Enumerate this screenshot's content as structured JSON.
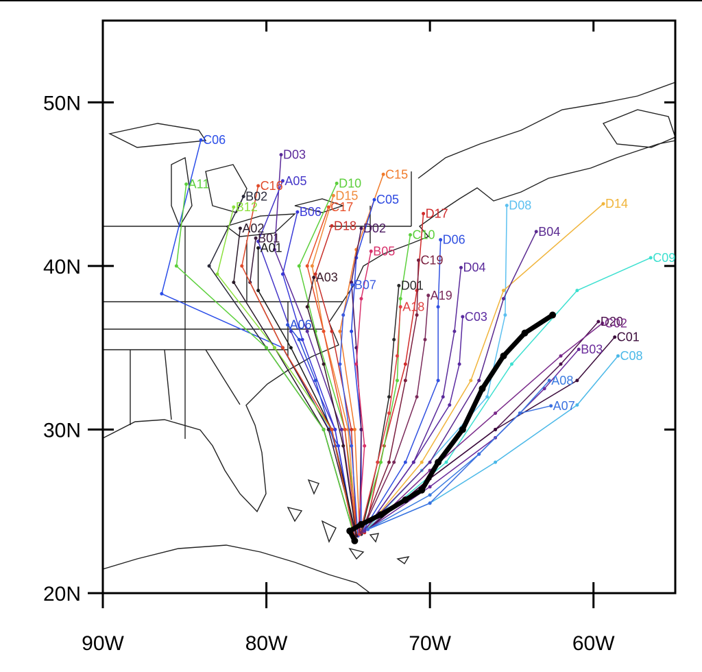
{
  "chart_data": {
    "type": "line",
    "xlim": [
      -90,
      -55
    ],
    "ylim": [
      20,
      55
    ],
    "xticks": [
      {
        "value": -90,
        "label": "90W"
      },
      {
        "value": -80,
        "label": "80W"
      },
      {
        "value": -70,
        "label": "70W"
      },
      {
        "value": -60,
        "label": "60W"
      }
    ],
    "yticks": [
      {
        "value": 20,
        "label": "20N"
      },
      {
        "value": 30,
        "label": "30N"
      },
      {
        "value": 40,
        "label": "40N"
      },
      {
        "value": 50,
        "label": "50N"
      }
    ],
    "observed": {
      "color": "#000000",
      "x": [
        -74.6,
        -74.9,
        -74.2,
        -73.0,
        -71.5,
        -70.5,
        -69.5,
        -68.0,
        -66.8,
        -65.5,
        -64.2,
        -62.5
      ],
      "y": [
        23.2,
        23.8,
        24.2,
        24.8,
        25.7,
        26.3,
        28.0,
        30.0,
        32.5,
        34.5,
        35.9,
        37.0
      ]
    },
    "series": [
      {
        "name": "C06",
        "color": "#2a4de8",
        "x": [
          -74.6,
          -75.6,
          -79,
          -86.4,
          -84.0
        ],
        "y": [
          23.5,
          29,
          35,
          38.3,
          47.7
        ]
      },
      {
        "name": "D03",
        "color": "#5b2a9a",
        "x": [
          -74.5,
          -75.4,
          -77.5,
          -79.5,
          -79.1
        ],
        "y": [
          23.6,
          30,
          36,
          41,
          46.8
        ]
      },
      {
        "name": "A05",
        "color": "#4436c8",
        "x": [
          -74.6,
          -75.8,
          -78.5,
          -80.5,
          -79.0
        ],
        "y": [
          23.4,
          30,
          36,
          41.5,
          45.2
        ]
      },
      {
        "name": "D10",
        "color": "#5ccf3c",
        "x": [
          -74.4,
          -75.2,
          -77,
          -78,
          -75.7
        ],
        "y": [
          23.7,
          30,
          36,
          40,
          45.05
        ]
      },
      {
        "name": "C15",
        "color": "#f07a2a",
        "x": [
          -74.3,
          -74.6,
          -75.5,
          -74.5,
          -72.85
        ],
        "y": [
          23.8,
          30,
          36,
          41,
          45.6
        ]
      },
      {
        "name": "D15",
        "color": "#f08a3a",
        "x": [
          -74.5,
          -75,
          -76.5,
          -77.2,
          -75.9
        ],
        "y": [
          23.5,
          30,
          36,
          40,
          44.3
        ]
      },
      {
        "name": "C05",
        "color": "#2a46e0",
        "x": [
          -74.2,
          -74.2,
          -74.8,
          -74.5,
          -73.4
        ],
        "y": [
          23.6,
          30,
          36,
          40.5,
          44.05
        ]
      },
      {
        "name": "B06",
        "color": "#3a3ad8",
        "x": [
          -74.6,
          -75.8,
          -77.8,
          -79,
          -78.1
        ],
        "y": [
          23.4,
          30,
          35.5,
          39.5,
          43.3
        ]
      },
      {
        "name": "C17",
        "color": "#e8502a",
        "x": [
          -74.5,
          -75.2,
          -76.5,
          -77.5,
          -76.2
        ],
        "y": [
          23.5,
          30,
          36,
          40,
          43.6
        ]
      },
      {
        "name": "D17",
        "color": "#d02a2a",
        "x": [
          -74.0,
          -72.8,
          -71.5,
          -70.8,
          -70.4
        ],
        "y": [
          23.7,
          29,
          34,
          38.5,
          43.2
        ]
      },
      {
        "name": "D18",
        "color": "#c8302a",
        "x": [
          -74.5,
          -74.8,
          -76,
          -77,
          -76.0
        ],
        "y": [
          23.6,
          30,
          36,
          39.5,
          42.45
        ]
      },
      {
        "name": "D02",
        "color": "#4a1860",
        "x": [
          -74.3,
          -74.2,
          -74.5,
          -74.8,
          -74.2
        ],
        "y": [
          23.6,
          30,
          35,
          39,
          42.3
        ]
      },
      {
        "name": "D08",
        "color": "#5cc0f0",
        "x": [
          -74.0,
          -70.5,
          -66.5,
          -65.4,
          -65.3
        ],
        "y": [
          23.8,
          27.5,
          32,
          37,
          43.7
        ]
      },
      {
        "name": "D14",
        "color": "#f0b43a",
        "x": [
          -74.0,
          -70.5,
          -67.5,
          -65.5,
          -59.4
        ],
        "y": [
          23.8,
          28,
          33,
          38.5,
          43.8
        ]
      },
      {
        "name": "B04",
        "color": "#5a2a90",
        "x": [
          -74.2,
          -70,
          -67,
          -65.5,
          -63.5
        ],
        "y": [
          23.7,
          28,
          33,
          38,
          42.1
        ]
      },
      {
        "name": "D06",
        "color": "#3050e0",
        "x": [
          -74.1,
          -71.5,
          -69.5,
          -69.5,
          -69.35
        ],
        "y": [
          23.8,
          28,
          33,
          37.5,
          41.6
        ]
      },
      {
        "name": "C09",
        "color": "#3ce0d0",
        "x": [
          -74.0,
          -69,
          -65,
          -61,
          -56.5
        ],
        "y": [
          23.8,
          28,
          34,
          38.5,
          40.5
        ]
      },
      {
        "name": "D04",
        "color": "#5a2a9a",
        "x": [
          -74.0,
          -71,
          -69.2,
          -68.5,
          -68.1
        ],
        "y": [
          23.8,
          28,
          32,
          36,
          39.9
        ]
      },
      {
        "name": "C10",
        "color": "#5cd03c",
        "x": [
          -74.3,
          -73,
          -72,
          -71.8,
          -71.2
        ],
        "y": [
          23.6,
          28,
          33,
          38,
          41.9
        ]
      },
      {
        "name": "C19",
        "color": "#7a1e3e",
        "x": [
          -74.2,
          -72.5,
          -71.5,
          -70.8,
          -70.7
        ],
        "y": [
          23.7,
          28,
          33,
          37,
          40.35
        ]
      },
      {
        "name": "B05",
        "color": "#d8306a",
        "x": [
          -74.4,
          -74,
          -74.5,
          -74.2,
          -73.6
        ],
        "y": [
          23.5,
          29,
          34,
          38,
          40.9
        ]
      },
      {
        "name": "B07",
        "color": "#3a5ae0",
        "x": [
          -74.4,
          -74.8,
          -75.5,
          -75.3,
          -74.75
        ],
        "y": [
          23.5,
          29,
          34,
          37,
          38.85
        ]
      },
      {
        "name": "D01",
        "color": "#2a2a2a",
        "x": [
          -74.2,
          -73.2,
          -72.5,
          -72.2,
          -71.9
        ],
        "y": [
          23.6,
          28,
          32,
          35.5,
          38.8
        ]
      },
      {
        "name": "A18",
        "color": "#e04040",
        "x": [
          -74.3,
          -73.2,
          -72.5,
          -72,
          -71.8
        ],
        "y": [
          23.6,
          28,
          31,
          34.5,
          37.5
        ]
      },
      {
        "name": "A19",
        "color": "#7a2a5a",
        "x": [
          -74.2,
          -72.2,
          -70.8,
          -70.3,
          -70.1
        ],
        "y": [
          23.7,
          28,
          32,
          35.5,
          38.2
        ]
      },
      {
        "name": "C03",
        "color": "#5a2aa0",
        "x": [
          -74.0,
          -71,
          -68.8,
          -68.2,
          -68.0
        ],
        "y": [
          23.8,
          28,
          31.5,
          34,
          36.9
        ]
      },
      {
        "name": "D20",
        "color": "#4a0e4a",
        "x": [
          -73.8,
          -70,
          -66,
          -62,
          -59.7
        ],
        "y": [
          23.9,
          27,
          30,
          34,
          36.6
        ]
      },
      {
        "name": "C02",
        "color": "#7a2a8a",
        "x": [
          -73.8,
          -70,
          -66,
          -62,
          -59.45
        ],
        "y": [
          23.9,
          27.5,
          31,
          34.5,
          36.5
        ]
      },
      {
        "name": "C01",
        "color": "#3a0a3a",
        "x": [
          -73.8,
          -70,
          -66,
          -61,
          -58.7
        ],
        "y": [
          23.9,
          27,
          30,
          33,
          35.65
        ]
      },
      {
        "name": "B03",
        "color": "#6a2a9a",
        "x": [
          -73.8,
          -70,
          -66,
          -63,
          -60.9
        ],
        "y": [
          23.9,
          26.5,
          29.5,
          32.5,
          34.9
        ]
      },
      {
        "name": "C08",
        "color": "#4ab8e8",
        "x": [
          -73.8,
          -70,
          -66,
          -61,
          -58.5
        ],
        "y": [
          23.9,
          25.5,
          28,
          31.5,
          34.5
        ]
      },
      {
        "name": "A08",
        "color": "#3a7ae0",
        "x": [
          -73.8,
          -70,
          -67,
          -64.5,
          -62.7
        ],
        "y": [
          23.9,
          26,
          28.5,
          31,
          33.0
        ]
      },
      {
        "name": "A07",
        "color": "#3a70e0",
        "x": [
          -73.8,
          -70,
          -67,
          -64.5,
          -62.6
        ],
        "y": [
          23.9,
          25.5,
          28.5,
          31,
          31.45
        ]
      },
      {
        "name": "A06",
        "color": "#2a50d8",
        "x": [
          -74.6,
          -75.8,
          -77,
          -78,
          -78.7
        ],
        "y": [
          23.4,
          29,
          33,
          35.5,
          36.4
        ]
      },
      {
        "name": "A01",
        "color": "#1a1a1a",
        "x": [
          -74.5,
          -76,
          -78.5,
          -80.5,
          -80.5
        ],
        "y": [
          23.5,
          30,
          35,
          38.5,
          41.1
        ]
      },
      {
        "name": "A02",
        "color": "#2a1a2a",
        "x": [
          -74.6,
          -76.5,
          -79.5,
          -82,
          -81.6
        ],
        "y": [
          23.4,
          30,
          35,
          39,
          42.3
        ]
      },
      {
        "name": "B01",
        "color": "#3a1a3a",
        "x": [
          -74.5,
          -76.2,
          -79,
          -81,
          -80.65
        ],
        "y": [
          23.5,
          30,
          35,
          39,
          41.7
        ]
      },
      {
        "name": "B02",
        "color": "#2a2a3a",
        "x": [
          -74.6,
          -76.5,
          -80,
          -83.5,
          -81.4
        ],
        "y": [
          23.4,
          30,
          35,
          40,
          44.25
        ]
      },
      {
        "name": "A11",
        "color": "#5cd03c",
        "x": [
          -74.6,
          -76.5,
          -80,
          -85.5,
          -84.9
        ],
        "y": [
          23.4,
          30,
          35,
          40,
          45.0
        ]
      },
      {
        "name": "B12",
        "color": "#8ae03c",
        "x": [
          -74.6,
          -76,
          -79.5,
          -83,
          -82.0
        ],
        "y": [
          23.4,
          30,
          35,
          39.5,
          43.6
        ]
      },
      {
        "name": "C16",
        "color": "#e04a2a",
        "x": [
          -74.6,
          -76,
          -79,
          -81.5,
          -80.5
        ],
        "y": [
          23.4,
          30,
          35,
          40,
          44.9
        ]
      },
      {
        "name": "A03",
        "color": "#3a1a2a",
        "x": [
          -74.5,
          -75.3,
          -76.5,
          -77.5,
          -77.1
        ],
        "y": [
          23.5,
          29,
          34,
          37.5,
          39.3
        ]
      }
    ]
  }
}
